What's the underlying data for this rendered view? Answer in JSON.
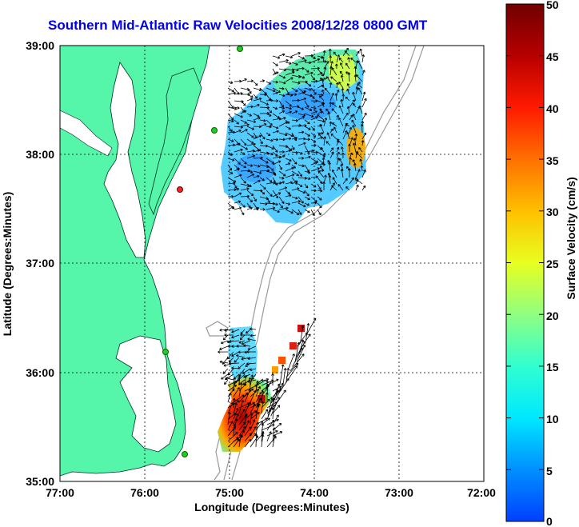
{
  "title": "Southern Mid-Atlantic Raw Velocities 2008/12/28 0800 GMT",
  "x_axis": {
    "label": "Longitude (Degrees:Minutes)",
    "ticks": [
      "77:00",
      "76:00",
      "75:00",
      "74:00",
      "73:00",
      "72:00"
    ]
  },
  "y_axis": {
    "label": "Latitude (Degrees:Minutes)",
    "ticks": [
      "39:00",
      "38:00",
      "37:00",
      "36:00",
      "35:00"
    ]
  },
  "colorbar": {
    "label": "Surface Velocity (cm/s)",
    "ticks": [
      "50",
      "45",
      "40",
      "35",
      "30",
      "25",
      "20",
      "15",
      "10",
      "5",
      "0"
    ],
    "min": 0,
    "max": 50
  },
  "colors": {
    "land": "#55f5aa",
    "title": "#0000ee",
    "grid": "#000000",
    "bathymetry": "#999999",
    "station_green": "#22cc22",
    "station_red": "#ff2222"
  },
  "chart_data": {
    "type": "map",
    "xlim": [
      -77,
      -72
    ],
    "ylim": [
      35,
      39
    ],
    "grid": true,
    "layers": [
      "land",
      "coastline",
      "bathymetry-contours",
      "velocity-field",
      "velocity-vectors",
      "hf-radar-stations"
    ]
  }
}
